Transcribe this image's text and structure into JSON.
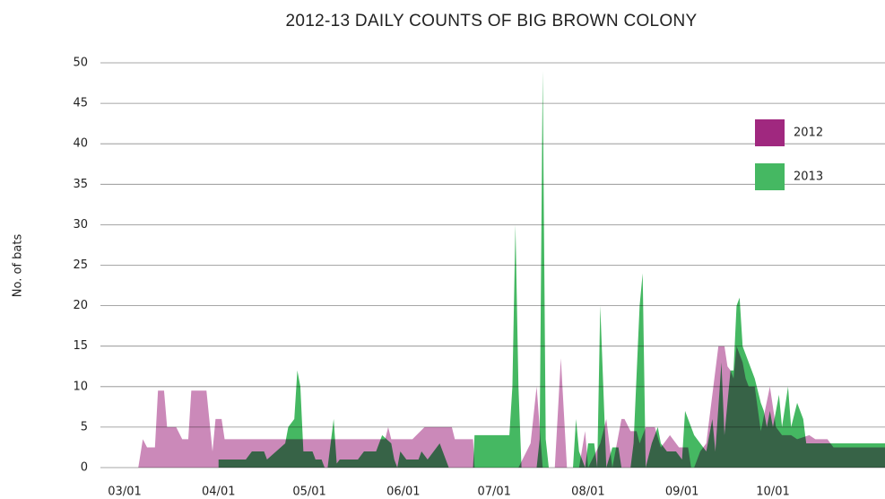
{
  "chart_data": {
    "type": "area",
    "title": "2012-13 DAILY COUNTS OF BIG BROWN COLONY",
    "y_label": "No. of bats",
    "xlim": [
      -8,
      251
    ],
    "xticks": [
      {
        "value": 0,
        "label": "03/01"
      },
      {
        "value": 31,
        "label": "04/01"
      },
      {
        "value": 61,
        "label": "05/01"
      },
      {
        "value": 92,
        "label": "06/01"
      },
      {
        "value": 122,
        "label": "07/01"
      },
      {
        "value": 153,
        "label": "08/01"
      },
      {
        "value": 184,
        "label": "09/01"
      },
      {
        "value": 214,
        "label": "10/01"
      }
    ],
    "ylim": [
      0,
      50
    ],
    "yticks": [
      0,
      5,
      10,
      15,
      20,
      25,
      30,
      35,
      40,
      45,
      50
    ],
    "grid": true,
    "legend": "upper right",
    "series": [
      {
        "name": "2012",
        "color": "#a0287f",
        "fill_opacity": 0.55,
        "x": [
          4.5,
          6,
          7.4,
          10,
          11,
          13,
          14,
          17,
          19,
          21,
          22,
          27,
          29,
          30,
          32,
          33,
          86,
          87,
          88,
          95,
          99,
          108,
          109,
          115,
          115.5,
          130,
          134,
          136,
          138,
          142,
          144,
          146,
          150,
          152,
          153,
          157,
          159,
          161,
          164,
          165,
          167,
          169,
          170,
          172,
          175,
          177,
          180,
          183,
          186,
          187,
          188,
          190,
          192,
          196,
          198,
          199,
          200,
          201,
          202,
          204,
          205,
          206,
          208,
          210,
          213,
          215,
          217,
          220,
          222,
          226,
          228,
          232,
          234,
          237,
          240,
          246,
          251
        ],
        "values": [
          0,
          3.5,
          2.5,
          2.5,
          9.5,
          9.5,
          5,
          5,
          3.5,
          3.5,
          9.5,
          9.5,
          2,
          6,
          6,
          3.5,
          3.5,
          5,
          3.5,
          3.5,
          5,
          5,
          3.5,
          3.5,
          0,
          0,
          3,
          10,
          0,
          0,
          13.5,
          0,
          0,
          4.5,
          0,
          3,
          6,
          0,
          6,
          6,
          4.5,
          4.5,
          3,
          5,
          5,
          2.5,
          4,
          2.5,
          2.5,
          0,
          0,
          2,
          3,
          15,
          15,
          12.5,
          12,
          11,
          15,
          13,
          11,
          10,
          10,
          4.5,
          10,
          5,
          4,
          4,
          3.5,
          4,
          3.5,
          3.5,
          2.5,
          2.5,
          2.5,
          2.5,
          2.5
        ]
      },
      {
        "name": "2013",
        "color": "#45b862",
        "fill_opacity": 1,
        "x": [
          31,
          40,
          42,
          46,
          47,
          50,
          53,
          54,
          56,
          57,
          58,
          59,
          62,
          63,
          65,
          66,
          67,
          69,
          70,
          71,
          77,
          79,
          83,
          85,
          88,
          89,
          90,
          91,
          93,
          97,
          98,
          100,
          102,
          104,
          106,
          107,
          115,
          115.5,
          127,
          128,
          129,
          130,
          131,
          136,
          137,
          138,
          139,
          140,
          148,
          149,
          150,
          152,
          153,
          155,
          156,
          157,
          158,
          159,
          161,
          163,
          164,
          167,
          168,
          170,
          171,
          172,
          174,
          176,
          177,
          179,
          182,
          184,
          185,
          186,
          188,
          190,
          192,
          194,
          195,
          197,
          198,
          200,
          201,
          202,
          203,
          204,
          206,
          208,
          210,
          211,
          212,
          213,
          214,
          216,
          217,
          219,
          220,
          222,
          224,
          225,
          226,
          228,
          251
        ],
        "values": [
          1,
          1,
          2,
          2,
          1,
          2,
          3,
          5,
          6,
          12,
          10,
          2,
          2,
          1,
          1,
          0,
          0,
          6,
          0.5,
          1,
          1,
          2,
          2,
          4,
          3,
          1,
          0,
          2,
          1,
          1,
          2,
          1,
          2,
          3,
          1,
          0,
          0,
          4,
          4,
          10,
          30,
          10,
          0,
          0,
          3.5,
          49,
          3.5,
          0,
          0,
          6,
          2,
          0,
          3,
          3,
          0,
          20,
          10,
          0,
          2.5,
          2.5,
          0,
          0,
          3,
          20,
          24,
          0,
          3,
          5,
          3,
          2,
          2,
          1,
          7,
          6,
          4,
          3,
          2,
          6,
          2,
          13,
          4,
          12,
          12,
          20,
          21,
          15,
          13,
          11,
          8,
          7,
          5,
          7,
          5,
          9,
          5,
          10,
          5,
          8,
          6,
          3,
          3,
          3,
          3
        ]
      }
    ]
  }
}
